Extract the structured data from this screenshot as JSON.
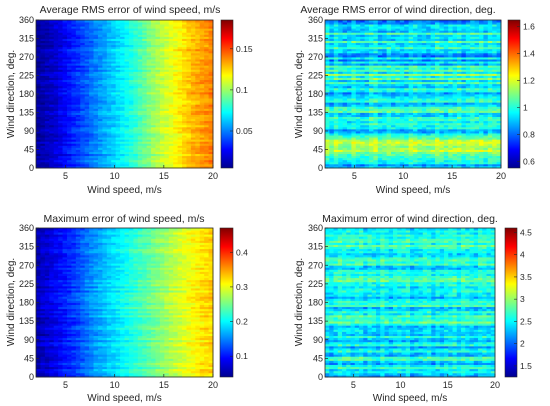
{
  "chart_data": [
    {
      "type": "heatmap",
      "title": "Average RMS error of wind speed, m/s",
      "xlabel": "Wind speed, m/s",
      "ylabel": "Wind direction, deg.",
      "xlim": [
        2,
        20
      ],
      "ylim": [
        0,
        360
      ],
      "xticks": [
        "5",
        "10",
        "15",
        "20"
      ],
      "yticks": [
        "0",
        "45",
        "90",
        "135",
        "180",
        "225",
        "270",
        "315",
        "360"
      ],
      "colorbar_range": [
        0.005,
        0.185
      ],
      "colorbar_ticks": [
        "0.05",
        "0.1",
        "0.15"
      ],
      "colormap": "jet",
      "trend": "increases with wind speed",
      "x": [
        2,
        4,
        6,
        8,
        10,
        12,
        14,
        16,
        18,
        20
      ],
      "values": [
        0.01,
        0.02,
        0.035,
        0.05,
        0.065,
        0.08,
        0.1,
        0.115,
        0.13,
        0.14
      ]
    },
    {
      "type": "heatmap",
      "title": "Average RMS error of wind direction, deg.",
      "xlabel": "Wind speed, m/s",
      "ylabel": "Wind direction, deg.",
      "xlim": [
        2,
        20
      ],
      "ylim": [
        0,
        360
      ],
      "xticks": [
        "5",
        "10",
        "15",
        "20"
      ],
      "yticks": [
        "0",
        "45",
        "90",
        "135",
        "180",
        "225",
        "270",
        "315",
        "360"
      ],
      "colorbar_range": [
        0.55,
        1.65
      ],
      "colorbar_ticks": [
        "0.6",
        "0.8",
        "1",
        "1.2",
        "1.4",
        "1.6"
      ],
      "colormap": "jet",
      "trend": "roughly uniform, band pattern along wind direction",
      "y": [
        0,
        45,
        90,
        135,
        180,
        225,
        270,
        315,
        360
      ],
      "values": [
        0.9,
        1.2,
        0.95,
        1.0,
        0.9,
        1.05,
        0.9,
        1.0,
        0.9
      ]
    },
    {
      "type": "heatmap",
      "title": "Maximum error of wind speed, m/s",
      "xlabel": "Wind speed, m/s",
      "ylabel": "Wind direction, deg.",
      "xlim": [
        2,
        20
      ],
      "ylim": [
        0,
        360
      ],
      "xticks": [
        "5",
        "10",
        "15",
        "20"
      ],
      "yticks": [
        "0",
        "45",
        "90",
        "135",
        "180",
        "225",
        "270",
        "315",
        "360"
      ],
      "colorbar_range": [
        0.04,
        0.47
      ],
      "colorbar_ticks": [
        "0.1",
        "0.2",
        "0.3",
        "0.4"
      ],
      "colormap": "jet",
      "trend": "increases with wind speed",
      "x": [
        2,
        4,
        6,
        8,
        10,
        12,
        14,
        16,
        18,
        20
      ],
      "values": [
        0.06,
        0.09,
        0.12,
        0.16,
        0.19,
        0.22,
        0.25,
        0.28,
        0.31,
        0.33
      ]
    },
    {
      "type": "heatmap",
      "title": "Maximum error of wind direction, deg.",
      "xlabel": "Wind speed, m/s",
      "ylabel": "Wind direction, deg.",
      "xlim": [
        2,
        20
      ],
      "ylim": [
        0,
        360
      ],
      "xticks": [
        "5",
        "10",
        "15",
        "20"
      ],
      "yticks": [
        "0",
        "45",
        "90",
        "135",
        "180",
        "225",
        "270",
        "315",
        "360"
      ],
      "colorbar_range": [
        1.25,
        4.6
      ],
      "colorbar_ticks": [
        "1.5",
        "2",
        "2.5",
        "3",
        "3.5",
        "4",
        "4.5"
      ],
      "colormap": "jet",
      "trend": "roughly uniform, band pattern along wind direction",
      "y": [
        0,
        45,
        90,
        135,
        180,
        225,
        270,
        315,
        360
      ],
      "values": [
        2.3,
        2.5,
        2.4,
        2.6,
        2.5,
        2.7,
        2.5,
        2.6,
        2.4
      ]
    }
  ]
}
